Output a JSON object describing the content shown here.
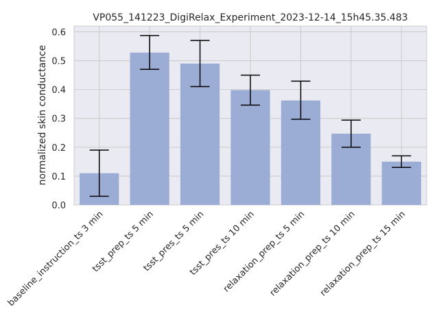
{
  "chart_data": {
    "type": "bar",
    "title": "VP055_141223_DigiRelax_Experiment_2023-12-14_15h45.35.483",
    "xlabel": "",
    "ylabel": "normalized skin conductance",
    "categories": [
      "baseline_instruction_ts 3 min",
      "tsst_prep_ts 5 min",
      "tsst_pres_ts 5 min",
      "tsst_pres_ts 10 min",
      "relaxation_prep_ts 5 min",
      "relaxation_prep_ts 10 min",
      "relaxation_prep_ts 15 min"
    ],
    "values": [
      0.11,
      0.528,
      0.49,
      0.398,
      0.362,
      0.247,
      0.15
    ],
    "error_low": [
      0.03,
      0.47,
      0.41,
      0.346,
      0.297,
      0.2,
      0.13
    ],
    "error_high": [
      0.19,
      0.587,
      0.57,
      0.45,
      0.429,
      0.294,
      0.17
    ],
    "ylim": [
      0,
      0.62
    ],
    "yticks": [
      0.0,
      0.1,
      0.2,
      0.3,
      0.4,
      0.5,
      0.6
    ],
    "ytick_labels": [
      "0.0",
      "0.1",
      "0.2",
      "0.3",
      "0.4",
      "0.5",
      "0.6"
    ],
    "grid": true,
    "colors": {
      "bar": "#9badd4",
      "plot_background": "#eaeaf2",
      "grid": "#cccccc",
      "errorbar": "#000000"
    }
  }
}
